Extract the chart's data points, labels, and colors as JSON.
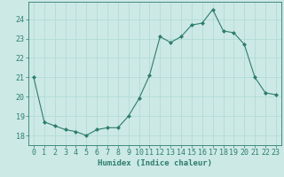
{
  "x": [
    0,
    1,
    2,
    3,
    4,
    5,
    6,
    7,
    8,
    9,
    10,
    11,
    12,
    13,
    14,
    15,
    16,
    17,
    18,
    19,
    20,
    21,
    22,
    23
  ],
  "y": [
    21.0,
    18.7,
    18.5,
    18.3,
    18.2,
    18.0,
    18.3,
    18.4,
    18.4,
    19.0,
    19.9,
    21.1,
    23.1,
    22.8,
    23.1,
    23.7,
    23.8,
    24.5,
    23.4,
    23.3,
    22.7,
    21.0,
    20.2,
    20.1
  ],
  "line_color": "#2e7d6e",
  "marker": "D",
  "marker_size": 2,
  "bg_color": "#cce9e6",
  "grid_color": "#afd8d4",
  "xlabel": "Humidex (Indice chaleur)",
  "xlim": [
    -0.5,
    23.5
  ],
  "ylim": [
    17.5,
    24.9
  ],
  "yticks": [
    18,
    19,
    20,
    21,
    22,
    23,
    24
  ],
  "xticks": [
    0,
    1,
    2,
    3,
    4,
    5,
    6,
    7,
    8,
    9,
    10,
    11,
    12,
    13,
    14,
    15,
    16,
    17,
    18,
    19,
    20,
    21,
    22,
    23
  ],
  "xlabel_fontsize": 6.5,
  "tick_fontsize": 6,
  "axis_color": "#2e7d6e",
  "linewidth": 0.8
}
